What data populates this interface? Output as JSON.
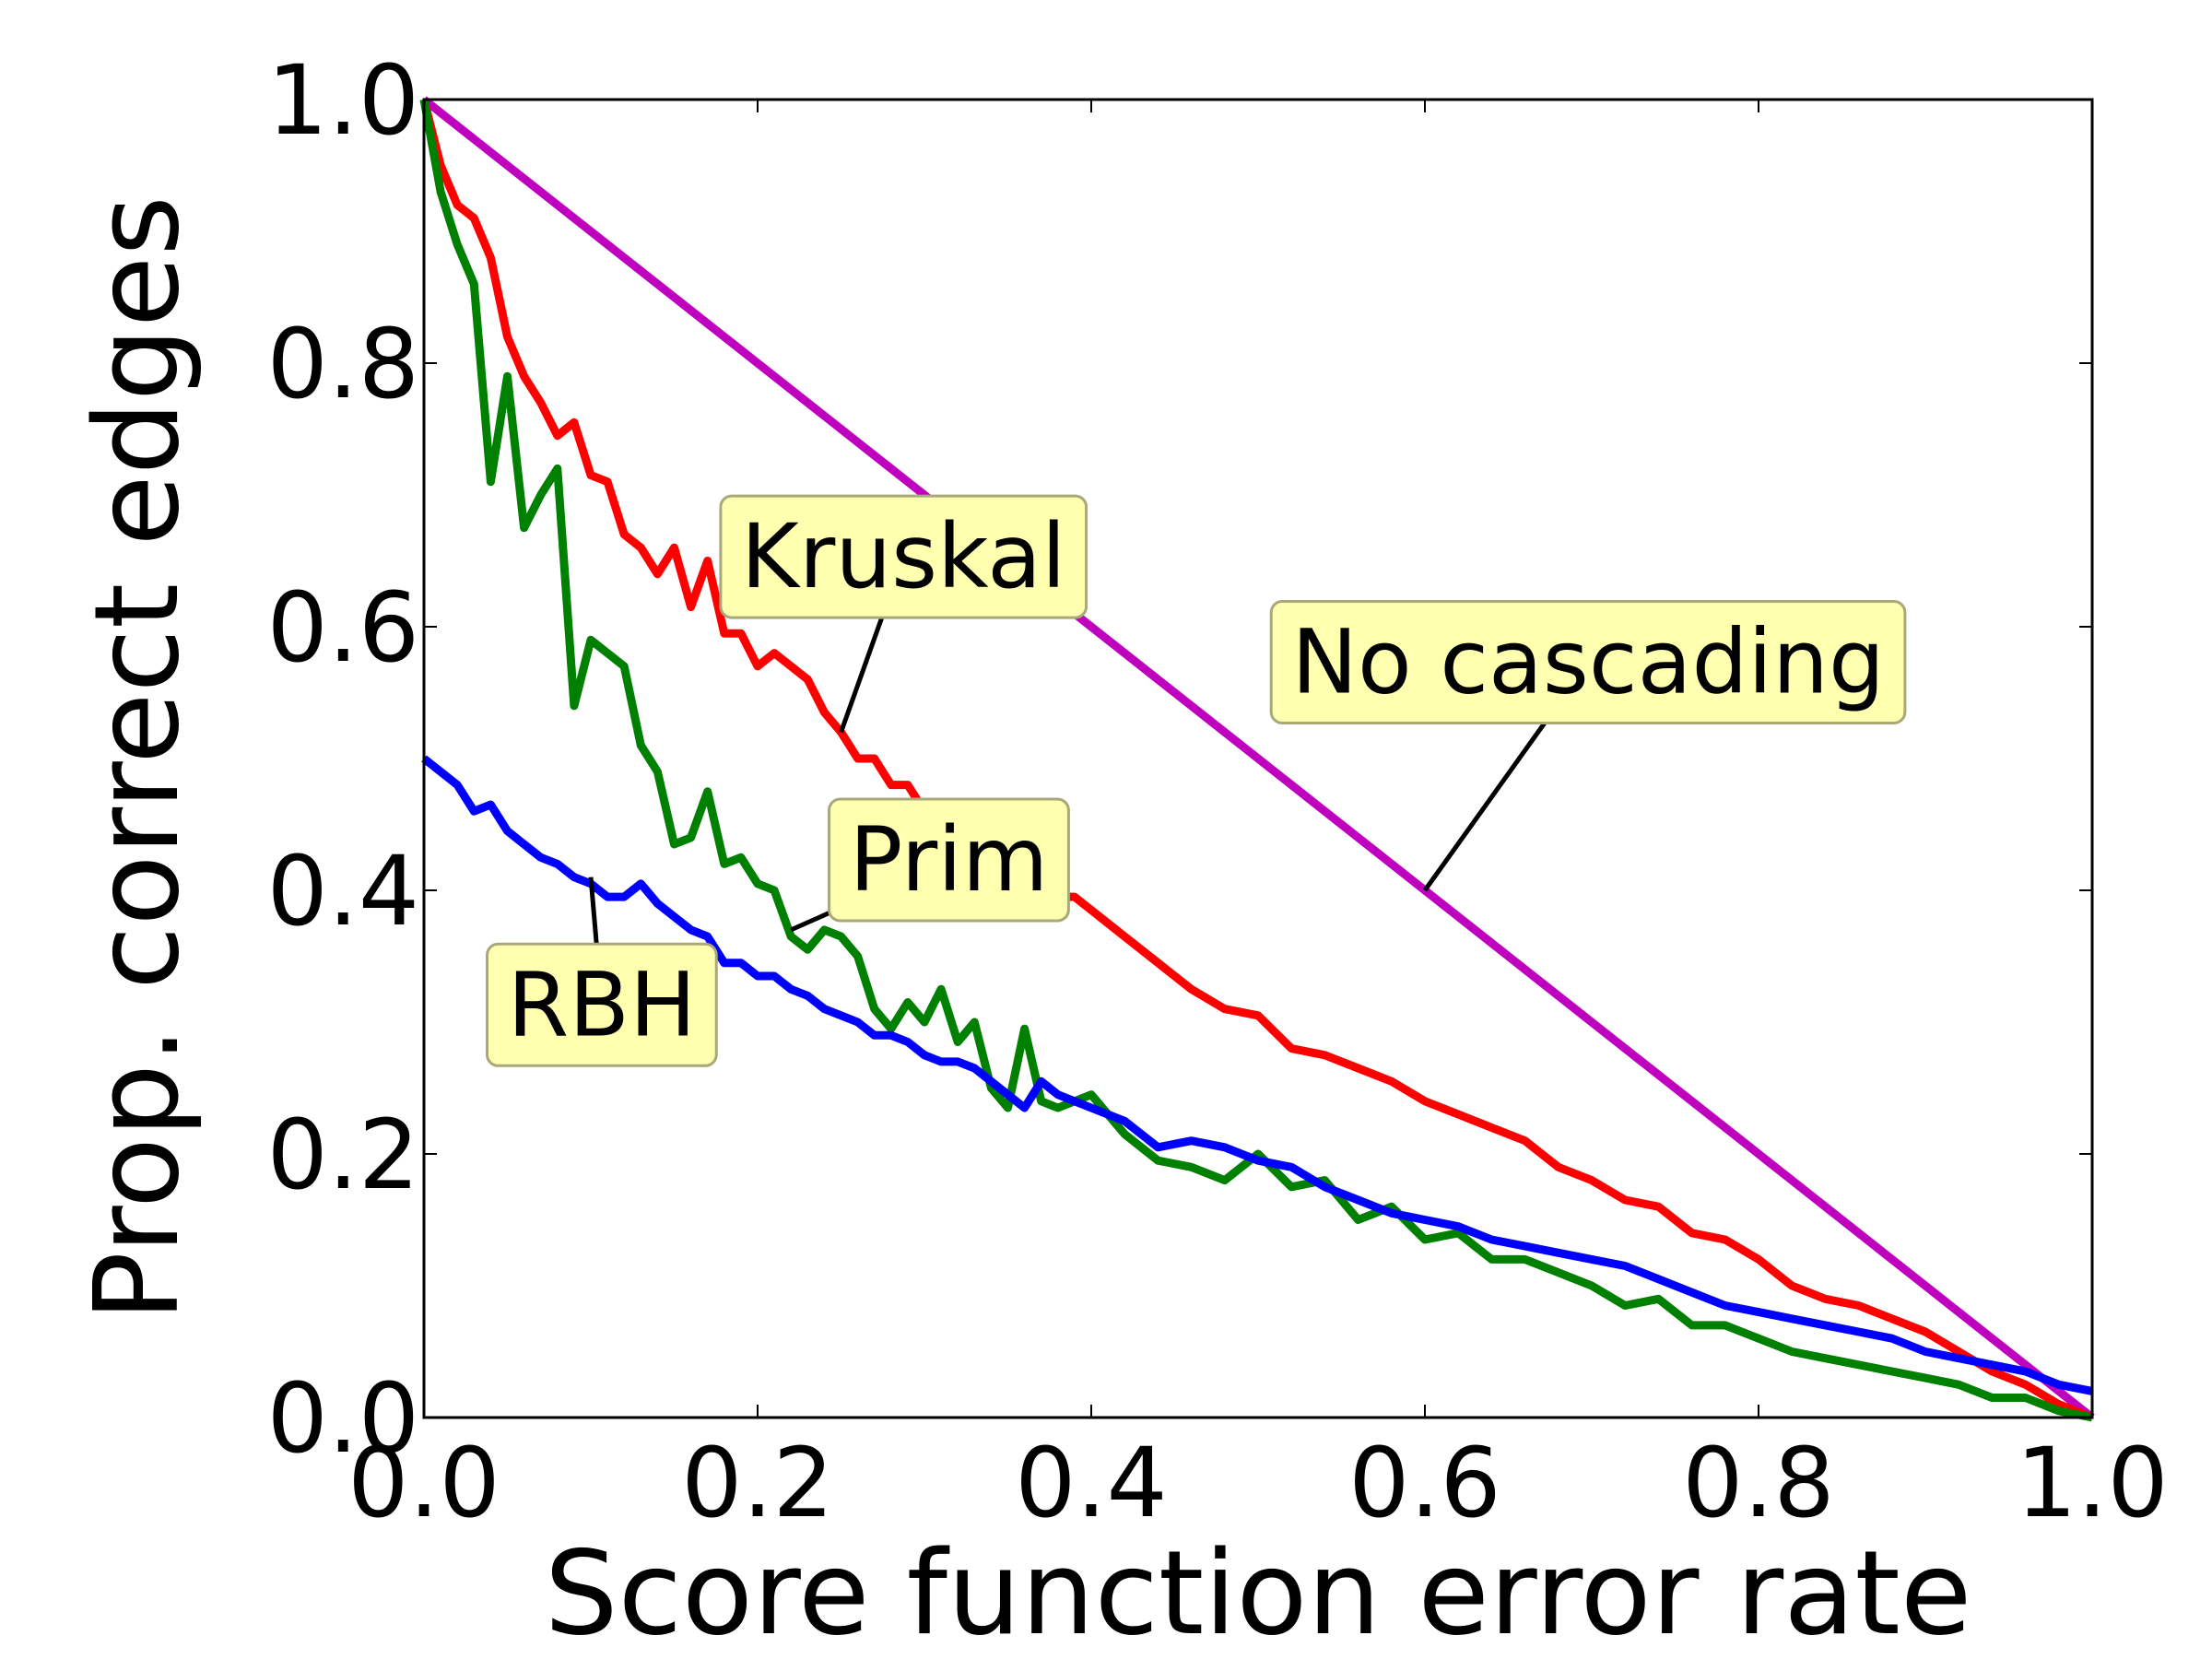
{
  "chart_data": {
    "type": "line",
    "title": "",
    "xlabel": "Score function error rate",
    "ylabel": "Prop. correct edges",
    "xlim": [
      0.0,
      1.0
    ],
    "ylim": [
      0.0,
      1.0
    ],
    "xticks": [
      "0.0",
      "0.2",
      "0.4",
      "0.6",
      "0.8",
      "1.0"
    ],
    "yticks": [
      "0.0",
      "0.2",
      "0.4",
      "0.6",
      "0.8",
      "1.0"
    ],
    "grid": false,
    "legend": "none (inline annotations)",
    "series": [
      {
        "name": "No cascading",
        "color": "#bf00bf",
        "x": [
          0.0,
          1.0
        ],
        "y": [
          1.0,
          0.0
        ]
      },
      {
        "name": "Kruskal",
        "color": "#ff0000",
        "x": [
          0.0,
          0.01,
          0.02,
          0.03,
          0.04,
          0.05,
          0.06,
          0.07,
          0.08,
          0.09,
          0.1,
          0.11,
          0.12,
          0.13,
          0.14,
          0.15,
          0.16,
          0.17,
          0.18,
          0.19,
          0.2,
          0.21,
          0.22,
          0.23,
          0.24,
          0.25,
          0.26,
          0.27,
          0.28,
          0.29,
          0.3,
          0.31,
          0.32,
          0.33,
          0.34,
          0.35,
          0.36,
          0.37,
          0.38,
          0.39,
          0.4,
          0.42,
          0.44,
          0.46,
          0.48,
          0.5,
          0.52,
          0.54,
          0.56,
          0.58,
          0.6,
          0.62,
          0.64,
          0.66,
          0.68,
          0.7,
          0.72,
          0.74,
          0.76,
          0.78,
          0.8,
          0.82,
          0.84,
          0.86,
          0.88,
          0.9,
          0.92,
          0.94,
          0.96,
          0.98,
          1.0
        ],
        "y": [
          1.0,
          0.95,
          0.92,
          0.91,
          0.88,
          0.82,
          0.79,
          0.77,
          0.745,
          0.755,
          0.715,
          0.71,
          0.67,
          0.66,
          0.64,
          0.66,
          0.615,
          0.65,
          0.595,
          0.595,
          0.57,
          0.58,
          0.57,
          0.56,
          0.535,
          0.52,
          0.5,
          0.5,
          0.48,
          0.48,
          0.46,
          0.45,
          0.45,
          0.45,
          0.43,
          0.43,
          0.4,
          0.4,
          0.395,
          0.395,
          0.385,
          0.365,
          0.345,
          0.325,
          0.31,
          0.305,
          0.28,
          0.275,
          0.265,
          0.255,
          0.24,
          0.23,
          0.22,
          0.21,
          0.19,
          0.18,
          0.165,
          0.16,
          0.14,
          0.135,
          0.12,
          0.1,
          0.09,
          0.085,
          0.075,
          0.065,
          0.05,
          0.035,
          0.025,
          0.01,
          0.0
        ]
      },
      {
        "name": "Prim",
        "color": "#008000",
        "x": [
          0.0,
          0.01,
          0.02,
          0.03,
          0.04,
          0.05,
          0.06,
          0.07,
          0.08,
          0.09,
          0.1,
          0.11,
          0.12,
          0.13,
          0.14,
          0.15,
          0.16,
          0.17,
          0.18,
          0.19,
          0.2,
          0.21,
          0.22,
          0.23,
          0.24,
          0.25,
          0.26,
          0.27,
          0.28,
          0.29,
          0.3,
          0.31,
          0.32,
          0.33,
          0.34,
          0.35,
          0.36,
          0.37,
          0.38,
          0.4,
          0.42,
          0.44,
          0.46,
          0.48,
          0.5,
          0.52,
          0.54,
          0.56,
          0.58,
          0.6,
          0.62,
          0.64,
          0.66,
          0.68,
          0.7,
          0.72,
          0.74,
          0.76,
          0.78,
          0.8,
          0.82,
          0.84,
          0.86,
          0.88,
          0.9,
          0.92,
          0.94,
          0.96,
          0.98,
          1.0
        ],
        "y": [
          1.0,
          0.93,
          0.89,
          0.86,
          0.71,
          0.79,
          0.675,
          0.7,
          0.72,
          0.54,
          0.59,
          0.58,
          0.57,
          0.51,
          0.49,
          0.435,
          0.44,
          0.475,
          0.42,
          0.425,
          0.405,
          0.4,
          0.365,
          0.355,
          0.37,
          0.365,
          0.35,
          0.31,
          0.295,
          0.315,
          0.3,
          0.325,
          0.285,
          0.3,
          0.25,
          0.235,
          0.295,
          0.24,
          0.235,
          0.245,
          0.215,
          0.195,
          0.19,
          0.18,
          0.2,
          0.175,
          0.18,
          0.15,
          0.16,
          0.135,
          0.14,
          0.12,
          0.12,
          0.11,
          0.1,
          0.085,
          0.09,
          0.07,
          0.07,
          0.06,
          0.05,
          0.045,
          0.04,
          0.035,
          0.03,
          0.025,
          0.015,
          0.015,
          0.005,
          0.0
        ]
      },
      {
        "name": "RBH",
        "color": "#0000ff",
        "x": [
          0.0,
          0.02,
          0.03,
          0.04,
          0.05,
          0.06,
          0.07,
          0.08,
          0.09,
          0.1,
          0.11,
          0.12,
          0.13,
          0.14,
          0.15,
          0.16,
          0.17,
          0.18,
          0.19,
          0.2,
          0.21,
          0.22,
          0.23,
          0.24,
          0.25,
          0.26,
          0.27,
          0.28,
          0.29,
          0.3,
          0.31,
          0.32,
          0.33,
          0.34,
          0.35,
          0.36,
          0.37,
          0.38,
          0.4,
          0.42,
          0.44,
          0.46,
          0.48,
          0.5,
          0.52,
          0.54,
          0.56,
          0.58,
          0.6,
          0.62,
          0.64,
          0.66,
          0.68,
          0.7,
          0.72,
          0.74,
          0.76,
          0.78,
          0.8,
          0.82,
          0.84,
          0.86,
          0.88,
          0.9,
          0.92,
          0.94,
          0.96,
          0.98,
          1.0
        ],
        "y": [
          0.5,
          0.48,
          0.46,
          0.465,
          0.445,
          0.435,
          0.425,
          0.42,
          0.41,
          0.405,
          0.395,
          0.395,
          0.405,
          0.39,
          0.38,
          0.37,
          0.365,
          0.345,
          0.345,
          0.335,
          0.335,
          0.325,
          0.32,
          0.31,
          0.305,
          0.3,
          0.29,
          0.29,
          0.285,
          0.275,
          0.27,
          0.27,
          0.265,
          0.255,
          0.245,
          0.235,
          0.255,
          0.245,
          0.235,
          0.225,
          0.205,
          0.21,
          0.205,
          0.195,
          0.19,
          0.175,
          0.165,
          0.155,
          0.15,
          0.145,
          0.135,
          0.13,
          0.125,
          0.12,
          0.115,
          0.105,
          0.095,
          0.085,
          0.08,
          0.075,
          0.07,
          0.065,
          0.06,
          0.05,
          0.045,
          0.04,
          0.035,
          0.025,
          0.02
        ]
      }
    ],
    "annotations": [
      {
        "text": "Kruskal",
        "series": "Kruskal",
        "point": [
          0.25,
          0.52
        ],
        "text_at": [
          0.19,
          0.63
        ]
      },
      {
        "text": "No cascading",
        "series": "No cascading",
        "point": [
          0.6,
          0.4
        ],
        "text_at": [
          0.52,
          0.55
        ]
      },
      {
        "text": "Prim",
        "series": "Prim",
        "point": [
          0.22,
          0.37
        ],
        "text_at": [
          0.255,
          0.4
        ]
      },
      {
        "text": "RBH",
        "series": "RBH",
        "point": [
          0.1,
          0.41
        ],
        "text_at": [
          0.05,
          0.29
        ]
      }
    ]
  }
}
